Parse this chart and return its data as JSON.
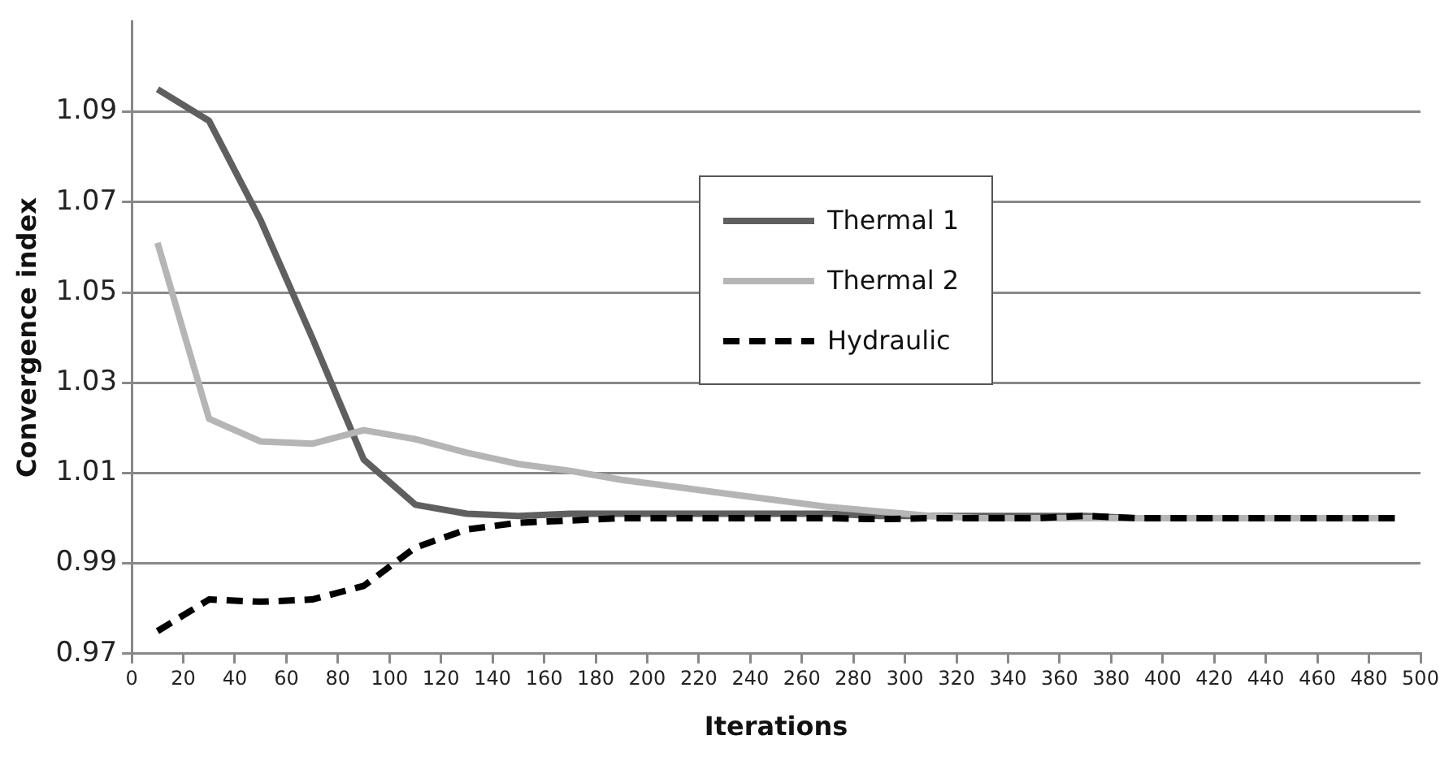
{
  "chart_data": {
    "type": "line",
    "xlabel": "Iterations",
    "ylabel": "Convergence index",
    "x": [
      10,
      30,
      50,
      70,
      90,
      110,
      130,
      150,
      170,
      190,
      210,
      230,
      250,
      270,
      290,
      310,
      330,
      350,
      370,
      390,
      410,
      430,
      450,
      470,
      490
    ],
    "series": [
      {
        "name": "Thermal 1",
        "color": "#5f5f5f",
        "line_style": "solid",
        "values": [
          1.095,
          1.088,
          1.066,
          1.04,
          1.013,
          1.003,
          1.001,
          1.0005,
          1.001,
          1.001,
          1.001,
          1.001,
          1.001,
          1.001,
          1.0005,
          1.0005,
          1.0005,
          1.0005,
          1.0005,
          1.0,
          1.0,
          1.0,
          1.0,
          1.0,
          1.0
        ]
      },
      {
        "name": "Thermal 2",
        "color": "#b5b5b5",
        "line_style": "solid",
        "values": [
          1.061,
          1.022,
          1.017,
          1.0165,
          1.0195,
          1.0175,
          1.0145,
          1.012,
          1.0105,
          1.0085,
          1.007,
          1.0055,
          1.004,
          1.0025,
          1.0015,
          1.0005,
          1.0,
          1.0,
          1.0,
          1.0,
          1.0,
          1.0,
          1.0,
          1.0,
          1.0
        ]
      },
      {
        "name": "Hydraulic",
        "color": "#000000",
        "line_style": "dashed",
        "values": [
          0.975,
          0.982,
          0.9815,
          0.982,
          0.985,
          0.9935,
          0.9975,
          0.999,
          0.9995,
          1.0,
          1.0,
          1.0,
          1.0,
          1.0,
          0.9998,
          1.0,
          1.0,
          1.0,
          1.0005,
          1.0,
          1.0,
          1.0,
          1.0,
          1.0,
          1.0
        ]
      }
    ],
    "xlim": [
      0,
      500
    ],
    "xticks": [
      0,
      20,
      40,
      60,
      80,
      100,
      120,
      140,
      160,
      180,
      200,
      220,
      240,
      260,
      280,
      300,
      320,
      340,
      360,
      380,
      400,
      420,
      440,
      460,
      480,
      500
    ],
    "ylim": [
      0.97,
      1.11
    ],
    "yticks": [
      0.97,
      0.99,
      1.01,
      1.03,
      1.05,
      1.07,
      1.09
    ],
    "grid": "y",
    "legend": "top right",
    "marker": "none"
  }
}
